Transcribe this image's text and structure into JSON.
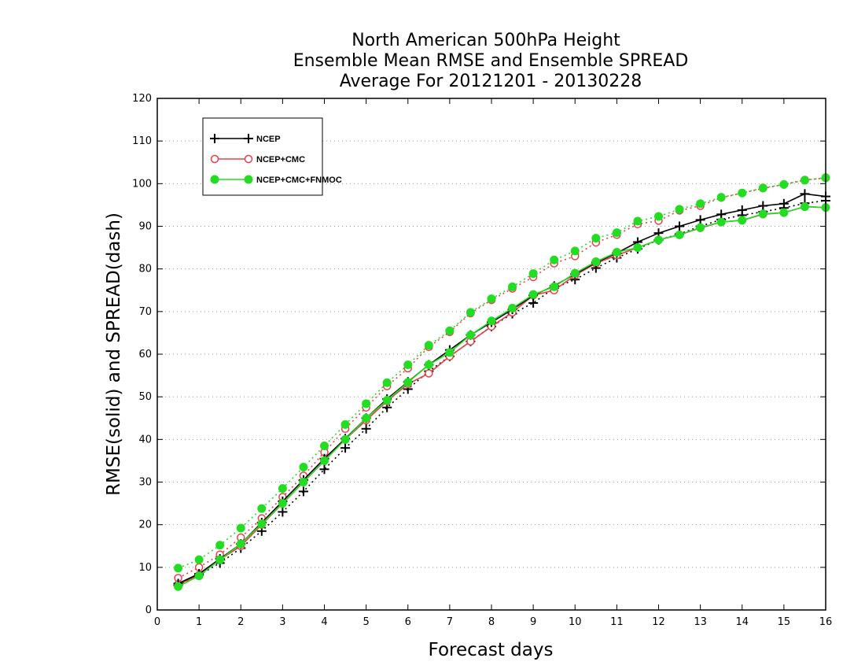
{
  "chart_data": {
    "type": "line",
    "title_lines": [
      "North American 500hPa Height",
      "Ensemble Mean RMSE and Ensemble SPREAD",
      "Average For 20121201 - 20130228"
    ],
    "xlabel": "Forecast days",
    "ylabel": "RMSE(solid) and SPREAD(dash)",
    "xlim": [
      0,
      16
    ],
    "ylim": [
      0,
      120
    ],
    "x_ticks": [
      0,
      1,
      2,
      3,
      4,
      5,
      6,
      7,
      8,
      9,
      10,
      11,
      12,
      13,
      14,
      15,
      16
    ],
    "y_ticks": [
      0,
      10,
      20,
      30,
      40,
      50,
      60,
      70,
      80,
      90,
      100,
      110,
      120
    ],
    "grid": "horizontal-dotted",
    "legend_position": "top-left",
    "x": [
      0.5,
      1,
      1.5,
      2,
      2.5,
      3,
      3.5,
      4,
      4.5,
      5,
      5.5,
      6,
      6.5,
      7,
      7.5,
      8,
      8.5,
      9,
      9.5,
      10,
      10.5,
      11,
      11.5,
      12,
      12.5,
      13,
      13.5,
      14,
      14.5,
      15,
      15.5,
      16
    ],
    "series": [
      {
        "name": "NCEP",
        "color": "#000000",
        "marker": "plus",
        "rmse": [
          6.2,
          8.5,
          12,
          15.5,
          20.5,
          25.5,
          30.5,
          35.5,
          40.2,
          45,
          49.5,
          53.5,
          57.5,
          61,
          64.5,
          67.5,
          70.5,
          73.8,
          76,
          78.8,
          81.5,
          83.7,
          86.3,
          88.4,
          90,
          91.5,
          92.8,
          93.8,
          94.8,
          95.3,
          97.6,
          97
        ],
        "spread": [
          5.8,
          8.2,
          11,
          14.5,
          18.5,
          23,
          27.8,
          33,
          38,
          42.5,
          47.5,
          51.8,
          56,
          59.5,
          63,
          66.5,
          69.5,
          72,
          75.5,
          77.5,
          80.2,
          82.6,
          84.7,
          86.8,
          88.2,
          90,
          91.6,
          92.6,
          93.4,
          94.3,
          95.4,
          96
        ]
      },
      {
        "name": "NCEP+CMC",
        "color": "#e8404a",
        "marker": "circle-open",
        "rmse": [
          6,
          8.2,
          11.8,
          15,
          20,
          25,
          30,
          35,
          40,
          44.5,
          49,
          53,
          55.5,
          59.5,
          63,
          66.5,
          69.8,
          73.8,
          75,
          78.5,
          81.3,
          83.2,
          85,
          86.8,
          88,
          89.6,
          91,
          91.4,
          92.8,
          93.2,
          94.6,
          94.4
        ],
        "spread": [
          7.5,
          10,
          13,
          17,
          21.5,
          26.5,
          31.5,
          37,
          42.5,
          47.5,
          52.5,
          56.7,
          61.7,
          65.2,
          69.6,
          72.7,
          75.4,
          78.1,
          81.3,
          83,
          86.2,
          88,
          90.5,
          91.3,
          93.7,
          94.8,
          96.7,
          97.8,
          98.9,
          99.8,
          100.9,
          101.3
        ]
      },
      {
        "name": "NCEP+CMC+FNMOC",
        "color": "#22dd22",
        "marker": "circle-filled",
        "rmse": [
          5.5,
          8,
          11.8,
          15.5,
          20.2,
          25,
          30,
          35,
          40,
          45,
          49.2,
          53.4,
          57.5,
          60.4,
          64.5,
          67.8,
          70.8,
          74,
          75.8,
          79,
          81.7,
          83.9,
          85,
          86.8,
          88,
          89.7,
          91,
          91.4,
          92.9,
          93.2,
          94.6,
          94.4
        ],
        "spread": [
          9.8,
          11.8,
          15.2,
          19.2,
          23.8,
          28.5,
          33.5,
          38.5,
          43.5,
          48.4,
          53.3,
          57.5,
          62.1,
          65.5,
          69.8,
          73,
          75.8,
          78.9,
          82.1,
          84.2,
          87.2,
          88.5,
          91.2,
          92.3,
          94,
          95.3,
          96.8,
          97.8,
          99,
          99.8,
          100.8,
          101.4
        ]
      }
    ]
  }
}
